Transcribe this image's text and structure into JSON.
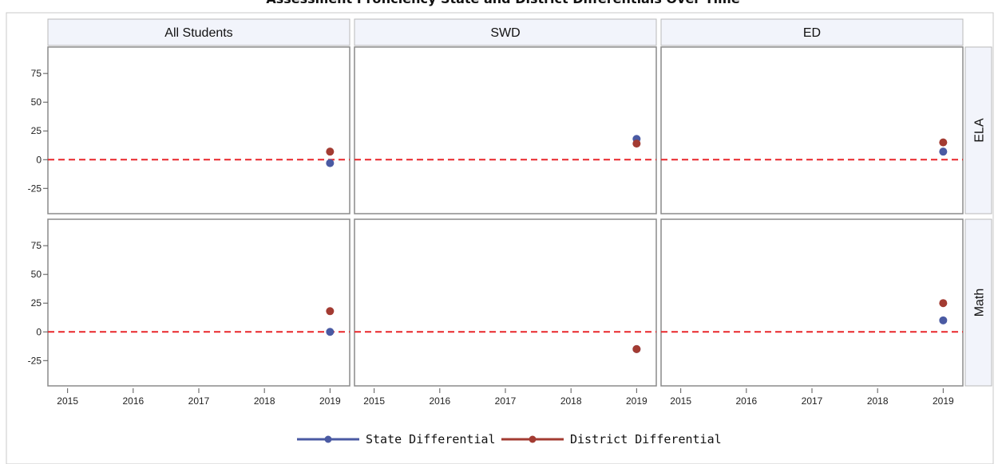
{
  "chart_data": {
    "type": "scatter",
    "title": "Assessment Proficiency State and District Differentials Over Time",
    "columns": [
      "All Students",
      "SWD",
      "ED"
    ],
    "rows": [
      "ELA",
      "Math"
    ],
    "x_ticks": [
      "2015",
      "2016",
      "2017",
      "2018",
      "2019"
    ],
    "xlim": [
      2014.7,
      2019.3
    ],
    "y_ticks": [
      75,
      50,
      25,
      0,
      -25
    ],
    "ylim": [
      -47,
      98
    ],
    "reference_line": {
      "y": 0,
      "style": "dashed",
      "color": "#e8262a"
    },
    "grid": false,
    "legend_position": "bottom",
    "series": [
      {
        "name": "State Differential",
        "color": "#4a5aa3",
        "points": [
          {
            "row": "ELA",
            "col": "All Students",
            "x": 2019,
            "y": -3
          },
          {
            "row": "ELA",
            "col": "SWD",
            "x": 2019,
            "y": 18
          },
          {
            "row": "ELA",
            "col": "ED",
            "x": 2019,
            "y": 7
          },
          {
            "row": "Math",
            "col": "All Students",
            "x": 2019,
            "y": 0
          },
          {
            "row": "Math",
            "col": "SWD",
            "x": 2019,
            "y": -15
          },
          {
            "row": "Math",
            "col": "ED",
            "x": 2019,
            "y": 10
          }
        ]
      },
      {
        "name": "District Differential",
        "color": "#a33b32",
        "points": [
          {
            "row": "ELA",
            "col": "All Students",
            "x": 2019,
            "y": 7
          },
          {
            "row": "ELA",
            "col": "SWD",
            "x": 2019,
            "y": 14
          },
          {
            "row": "ELA",
            "col": "ED",
            "x": 2019,
            "y": 15
          },
          {
            "row": "Math",
            "col": "All Students",
            "x": 2019,
            "y": 18
          },
          {
            "row": "Math",
            "col": "SWD",
            "x": 2019,
            "y": -15
          },
          {
            "row": "Math",
            "col": "ED",
            "x": 2019,
            "y": 25
          }
        ]
      }
    ]
  }
}
